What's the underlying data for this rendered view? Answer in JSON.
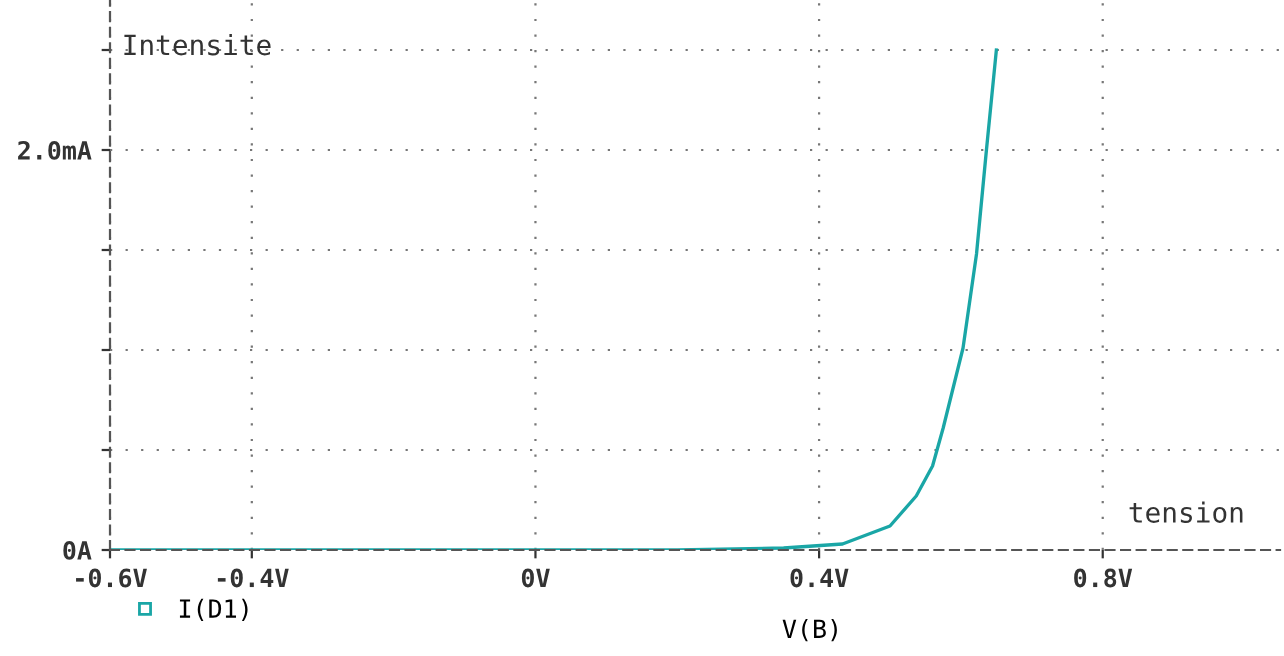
{
  "chart_data": {
    "type": "line",
    "xlabel": "V(B)",
    "annotations": [
      "Intensite",
      "tension"
    ],
    "series": [
      {
        "name": "I(D1)",
        "color": "#1aa6a6",
        "x": [
          -0.6,
          0.2,
          0.35,
          0.433,
          0.5,
          0.537,
          0.56,
          0.575,
          0.603,
          0.622,
          0.636,
          0.65
        ],
        "values": [
          0,
          0,
          0.01,
          0.03,
          0.12,
          0.27,
          0.42,
          0.61,
          1.01,
          1.48,
          2.0,
          2.5
        ]
      }
    ],
    "xlim": [
      -0.6,
      1.05
    ],
    "ylim": [
      0,
      2.75
    ],
    "xticks": [
      {
        "value": -0.6,
        "label": "-0.6V"
      },
      {
        "value": -0.4,
        "label": "-0.4V"
      },
      {
        "value": 0,
        "label": "0V"
      },
      {
        "value": 0.4,
        "label": "0.4V"
      },
      {
        "value": 0.8,
        "label": "0.8V"
      }
    ],
    "yticks": [
      {
        "value": 0,
        "label": "0A"
      },
      {
        "value": 0.5,
        "label": null
      },
      {
        "value": 1.0,
        "label": null
      },
      {
        "value": 1.5,
        "label": null
      },
      {
        "value": 2.0,
        "label": "2.0mA"
      },
      {
        "value": 2.5,
        "label": null
      }
    ],
    "grid": true,
    "legend": "bottom left",
    "line_style": "solid"
  }
}
